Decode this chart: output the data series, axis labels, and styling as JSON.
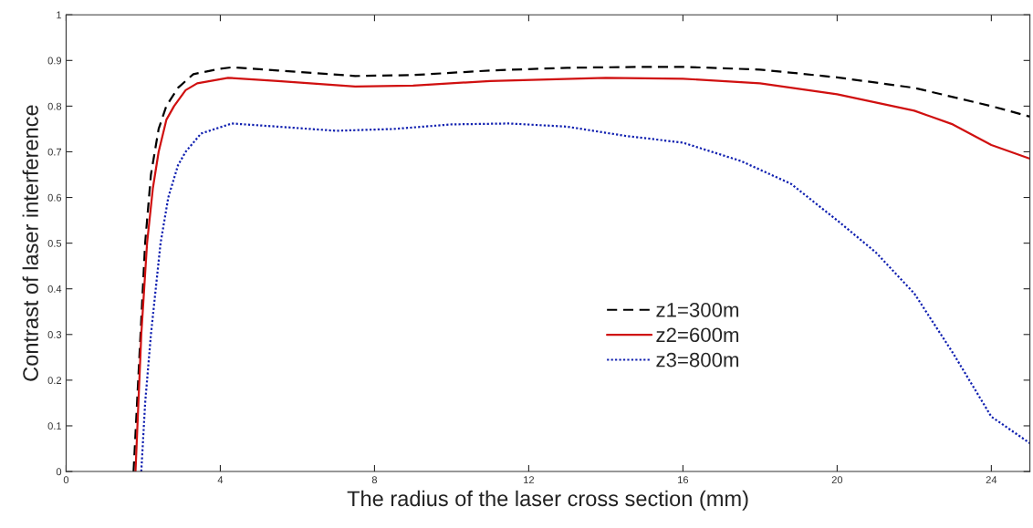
{
  "chart_data": {
    "type": "line",
    "xlabel": "The radius of the laser cross section (mm)",
    "ylabel": "Contrast of laser interference",
    "xlim": [
      0,
      25
    ],
    "xticks": [
      0,
      4,
      8,
      12,
      16,
      20,
      24
    ],
    "ylim": [
      0,
      1
    ],
    "yticks": [
      0,
      0.1,
      0.2,
      0.3,
      0.4,
      0.5,
      0.6,
      0.7,
      0.8,
      0.9,
      1
    ],
    "grid": false,
    "legend": "bottom",
    "marker": "none",
    "series": [
      {
        "name": "z1=300m",
        "color": "#000000",
        "line_style": "dashed",
        "x": [
          1.75,
          1.9,
          2.05,
          2.2,
          2.4,
          2.6,
          2.9,
          3.3,
          4.0,
          4.3,
          5.5,
          7.5,
          9.0,
          11.0,
          13.0,
          15.0,
          16.0,
          18.0,
          20.0,
          22.0,
          24.0,
          25.0
        ],
        "values": [
          0,
          0.25,
          0.5,
          0.65,
          0.75,
          0.8,
          0.84,
          0.87,
          0.882,
          0.885,
          0.878,
          0.866,
          0.868,
          0.878,
          0.884,
          0.886,
          0.886,
          0.88,
          0.863,
          0.84,
          0.8,
          0.777
        ]
      },
      {
        "name": "z2=600m",
        "color": "#d01010",
        "line_style": "solid",
        "x": [
          1.8,
          1.95,
          2.1,
          2.25,
          2.4,
          2.6,
          2.8,
          3.1,
          3.4,
          4.2,
          5.5,
          7.5,
          9.0,
          11.0,
          14.0,
          16.0,
          18.0,
          20.0,
          22.0,
          23.0,
          24.0,
          25.0
        ],
        "values": [
          0,
          0.3,
          0.5,
          0.62,
          0.7,
          0.77,
          0.8,
          0.835,
          0.85,
          0.862,
          0.855,
          0.843,
          0.845,
          0.855,
          0.862,
          0.86,
          0.85,
          0.826,
          0.79,
          0.76,
          0.715,
          0.685
        ]
      },
      {
        "name": "z3=800m",
        "color": "#1020b0",
        "line_style": "dotted",
        "x": [
          1.95,
          2.05,
          2.2,
          2.45,
          2.65,
          2.9,
          3.1,
          3.5,
          4.3,
          5.5,
          7.0,
          8.5,
          10.0,
          11.5,
          13.0,
          14.5,
          16.0,
          17.5,
          18.8,
          20.0,
          21.0,
          22.0,
          23.0,
          24.0,
          25.0
        ],
        "values": [
          0,
          0.15,
          0.3,
          0.5,
          0.6,
          0.67,
          0.7,
          0.74,
          0.762,
          0.755,
          0.746,
          0.75,
          0.76,
          0.762,
          0.755,
          0.735,
          0.72,
          0.68,
          0.63,
          0.55,
          0.48,
          0.39,
          0.26,
          0.12,
          0.062
        ]
      }
    ]
  }
}
